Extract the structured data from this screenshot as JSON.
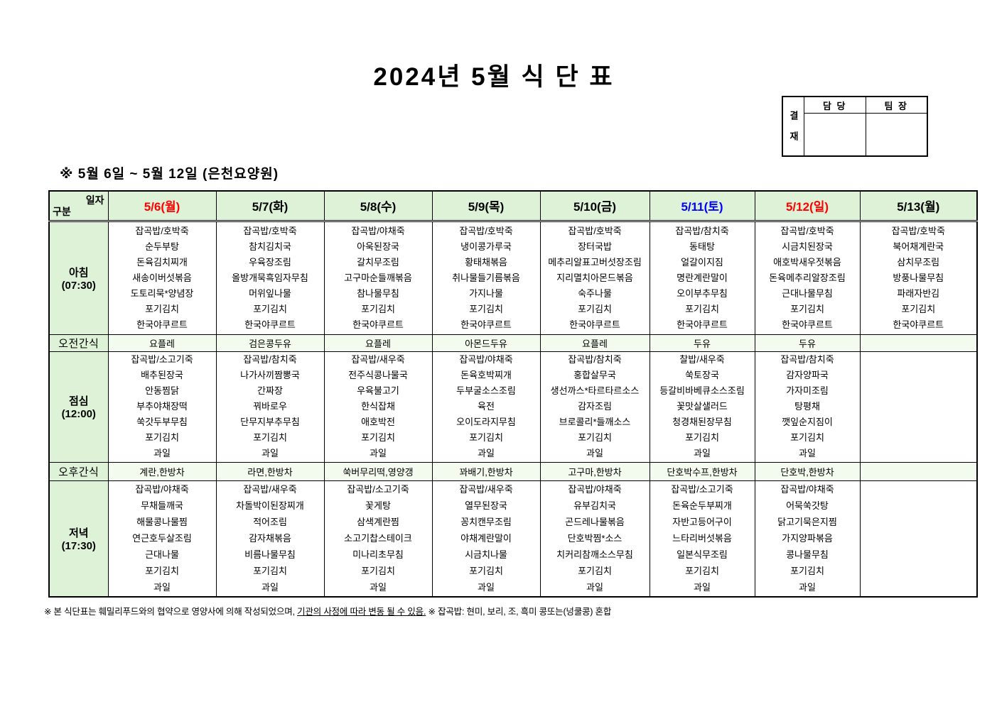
{
  "page": {
    "title": "2024년 5월 식 단 표",
    "subtitle": "※  5월 6일 ~ 5월 12일 (은천요양원)",
    "footnote": {
      "part1": "※ 본 식단표는 훼밀리푸드와의 협약으로 영양사에 의해 작성되었으며, ",
      "underlined": "기관의 사정에 따라 변동 될 수 있음.",
      "part2": " ※ 잡곡밥: 현미, 보리, 조, 흑미 콩또는(넝쿨콩) 혼합"
    }
  },
  "approval": {
    "stamp": "결재",
    "columns": [
      "담 당",
      "팀 장"
    ]
  },
  "table": {
    "corner": {
      "top_right": "일자",
      "bottom_left": "구분"
    },
    "dates": [
      {
        "label": "5/6(월)",
        "color": "#ff0000"
      },
      {
        "label": "5/7(화)",
        "color": "#000000"
      },
      {
        "label": "5/8(수)",
        "color": "#000000"
      },
      {
        "label": "5/9(목)",
        "color": "#000000"
      },
      {
        "label": "5/10(금)",
        "color": "#000000"
      },
      {
        "label": "5/11(토)",
        "color": "#0000ff"
      },
      {
        "label": "5/12(일)",
        "color": "#ff0000"
      },
      {
        "label": "5/13(월)",
        "color": "#000000"
      }
    ],
    "rows": [
      {
        "id": "breakfast",
        "type": "meal",
        "label": "아침",
        "time": "(07:30)",
        "cells": [
          [
            "잡곡밥/호박죽",
            "순두부탕",
            "돈육김치찌개",
            "새송이버섯볶음",
            "도토리묵*양념장",
            "포기김치",
            "한국야쿠르트"
          ],
          [
            "잡곡밥/호박죽",
            "참치김치국",
            "우육장조림",
            "올방개묵흑임자무침",
            "머위잎나물",
            "포기김치",
            "한국야쿠르트"
          ],
          [
            "잡곡밥/야채죽",
            "아욱된장국",
            "갈치무조림",
            "고구마순들깨볶음",
            "참나물무침",
            "포기김치",
            "한국야쿠르트"
          ],
          [
            "잡곡밥/호박죽",
            "냉이콩가루국",
            "황태채볶음",
            "취나물들기름볶음",
            "가지나물",
            "포기김치",
            "한국야쿠르트"
          ],
          [
            "잡곡밥/호박죽",
            "장터국밥",
            "메추리알표고버섯장조림",
            "지리멸치아몬드볶음",
            "숙주나물",
            "포기김치",
            "한국야쿠르트"
          ],
          [
            "잡곡밥/참치죽",
            "동태탕",
            "얼갈이지짐",
            "명란계란말이",
            "오이부추무침",
            "포기김치",
            "한국야쿠르트"
          ],
          [
            "잡곡밥/호박죽",
            "시금치된장국",
            "애호박새우젓볶음",
            "돈육메추리알장조림",
            "근대나물무침",
            "포기김치",
            "한국야쿠르트"
          ],
          [
            "잡곡밥/호박죽",
            "북어채계란국",
            "삼치무조림",
            "방풍나물무침",
            "파래자반김",
            "포기김치",
            "한국야쿠르트"
          ]
        ]
      },
      {
        "id": "am-snack",
        "type": "snack",
        "label": "오전간식",
        "cells": [
          "요플레",
          "검은콩두유",
          "요플레",
          "아몬드두유",
          "요플레",
          "두유",
          "두유",
          ""
        ]
      },
      {
        "id": "lunch",
        "type": "meal",
        "label": "점심",
        "time": "(12:00)",
        "cells": [
          [
            "잡곡밥/소고기죽",
            "배추된장국",
            "안동찜닭",
            "부추야채장떡",
            "쑥갓두부무침",
            "포기김치",
            "과일"
          ],
          [
            "잡곡밥/참치죽",
            "나가사끼짬뽕국",
            "간짜장",
            "꿔바로우",
            "단무지부추무침",
            "포기김치",
            "과일"
          ],
          [
            "잡곡밥/새우죽",
            "전주식콩나물국",
            "우육불고기",
            "한식잡채",
            "애호박전",
            "포기김치",
            "과일"
          ],
          [
            "잡곡밥/야채죽",
            "돈육호박찌개",
            "두부굴소스조림",
            "육전",
            "오이도라지무침",
            "포기김치",
            "과일"
          ],
          [
            "잡곡밥/참치죽",
            "홍합살무국",
            "생선까스*타르타르소스",
            "감자조림",
            "브로콜리*들깨소스",
            "포기김치",
            "과일"
          ],
          [
            "찰밥/새우죽",
            "쑥토장국",
            "등갈비바베큐소스조림",
            "꽃맛살샐러드",
            "청경채된장무침",
            "포기김치",
            "과일"
          ],
          [
            "잡곡밥/참치죽",
            "감자양파국",
            "가자미조림",
            "탕평채",
            "깻잎순지짐이",
            "포기김치",
            "과일"
          ],
          []
        ]
      },
      {
        "id": "pm-snack",
        "type": "snack",
        "label": "오후간식",
        "cells": [
          "계란,한방차",
          "라면,한방차",
          "쑥버무리떡,영양갱",
          "꽈배기,한방차",
          "고구마,한방차",
          "단호박수프,한방차",
          "단호박,한방차",
          ""
        ]
      },
      {
        "id": "dinner",
        "type": "meal",
        "label": "저녁",
        "time": "(17:30)",
        "cells": [
          [
            "잡곡밥/야채죽",
            "무채들깨국",
            "해물콩나물찜",
            "연근호두살조림",
            "근대나물",
            "포기김치",
            "과일"
          ],
          [
            "잡곡밥/새우죽",
            "차돌박이된장찌개",
            "적어조림",
            "감자채볶음",
            "비름나물무침",
            "포기김치",
            "과일"
          ],
          [
            "잡곡밥/소고기죽",
            "꽃게탕",
            "삼색계란찜",
            "소고기찹스테이크",
            "미나리초무침",
            "포기김치",
            "과일"
          ],
          [
            "잡곡밥/새우죽",
            "열무된장국",
            "꽁치캔무조림",
            "야채계란말이",
            "시금치나물",
            "포기김치",
            "과일"
          ],
          [
            "잡곡밥/야채죽",
            "유부김치국",
            "곤드레나물볶음",
            "단호박찜*소스",
            "치커리참깨소스무침",
            "포기김치",
            "과일"
          ],
          [
            "잡곡밥/소고기죽",
            "돈육순두부찌개",
            "자반고등어구이",
            "느타리버섯볶음",
            "일본식무조림",
            "포기김치",
            "과일"
          ],
          [
            "잡곡밥/야채죽",
            "어묵쑥갓탕",
            "닭고기묵은지찜",
            "가지양파볶음",
            "콩나물무침",
            "포기김치",
            "과일"
          ],
          []
        ]
      }
    ]
  }
}
